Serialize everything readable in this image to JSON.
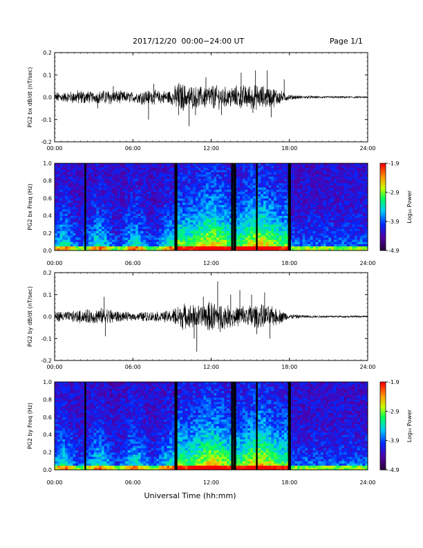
{
  "header": {
    "title": "2017/12/20  00:00−24:00 UT",
    "page": "Page 1/1"
  },
  "chart_data": [
    {
      "type": "line",
      "panel": "bx-waveform",
      "ylabel": "PG2 bx dB/dt (nT/sec)",
      "xlim": [
        0,
        24
      ],
      "ylim": [
        -0.2,
        0.2
      ],
      "xticks": [
        "00:00",
        "06:00",
        "12:00",
        "18:00",
        "24:00"
      ],
      "yticks": [
        "-0.2",
        "-0.1",
        "0.0",
        "0.1",
        "0.2"
      ],
      "envelope": {
        "hours": [
          0,
          1,
          2,
          3,
          4,
          5,
          6,
          7,
          8,
          9,
          9.5,
          10,
          11,
          12,
          13,
          14,
          15,
          16,
          17,
          18,
          19,
          20,
          21,
          22,
          23,
          24
        ],
        "amplitude": [
          0.02,
          0.02,
          0.03,
          0.02,
          0.03,
          0.025,
          0.02,
          0.03,
          0.025,
          0.03,
          0.06,
          0.05,
          0.04,
          0.05,
          0.04,
          0.045,
          0.05,
          0.045,
          0.035,
          0.01,
          0.006,
          0.005,
          0.004,
          0.004,
          0.004,
          0.003
        ]
      },
      "spikes": [
        [
          3.3,
          -0.05
        ],
        [
          4.5,
          0.05
        ],
        [
          7.2,
          -0.1
        ],
        [
          7.6,
          0.06
        ],
        [
          9.5,
          -0.08
        ],
        [
          10.3,
          -0.13
        ],
        [
          10.8,
          -0.08
        ],
        [
          11.6,
          0.09
        ],
        [
          12.8,
          -0.08
        ],
        [
          14.3,
          0.11
        ],
        [
          15.4,
          0.12
        ],
        [
          15.2,
          -0.07
        ],
        [
          16.3,
          0.12
        ],
        [
          16.6,
          -0.09
        ],
        [
          17.6,
          0.08
        ]
      ]
    },
    {
      "type": "heatmap",
      "panel": "bx-spectrogram",
      "ylabel": "PG2 bx Freq (Hz)",
      "xlim": [
        0,
        24
      ],
      "ylim": [
        0,
        1.0
      ],
      "xticks": [
        "00:00",
        "06:00",
        "12:00",
        "18:00",
        "24:00"
      ],
      "yticks": [
        "0.0",
        "0.2",
        "0.4",
        "0.6",
        "0.8",
        "1.0"
      ],
      "colorbar": {
        "label": "Log₁₀ Power",
        "min": -4.9,
        "max": -1.9,
        "ticks": [
          "-1.9",
          "-2.9",
          "-3.9",
          "-4.9"
        ]
      },
      "gap_hours": [
        2.35,
        9.25,
        9.35,
        13.6,
        13.75,
        13.85,
        15.5,
        17.95,
        18.05
      ]
    },
    {
      "type": "line",
      "panel": "by-waveform",
      "ylabel": "PG2 by dB/dt (nT/sec)",
      "xlim": [
        0,
        24
      ],
      "ylim": [
        -0.2,
        0.2
      ],
      "xticks": [
        "00:00",
        "06:00",
        "12:00",
        "18:00",
        "24:00"
      ],
      "yticks": [
        "-0.2",
        "-0.1",
        "0.0",
        "0.1",
        "0.2"
      ],
      "envelope": {
        "hours": [
          0,
          1,
          2,
          3,
          4,
          5,
          6,
          7,
          8,
          9,
          9.5,
          10,
          11,
          12,
          13,
          14,
          15,
          16,
          17,
          18,
          19,
          20,
          21,
          22,
          23,
          24
        ],
        "amplitude": [
          0.02,
          0.02,
          0.025,
          0.03,
          0.035,
          0.02,
          0.015,
          0.02,
          0.02,
          0.025,
          0.05,
          0.05,
          0.045,
          0.06,
          0.045,
          0.04,
          0.05,
          0.045,
          0.035,
          0.01,
          0.006,
          0.005,
          0.004,
          0.004,
          0.004,
          0.003
        ]
      },
      "spikes": [
        [
          3.8,
          0.09
        ],
        [
          3.9,
          -0.09
        ],
        [
          10.7,
          -0.1
        ],
        [
          10.9,
          -0.16
        ],
        [
          11.4,
          0.09
        ],
        [
          12.5,
          0.16
        ],
        [
          12.7,
          -0.07
        ],
        [
          13.5,
          0.1
        ],
        [
          14.2,
          0.12
        ],
        [
          15.1,
          0.1
        ],
        [
          15.5,
          -0.08
        ],
        [
          16.1,
          0.11
        ],
        [
          16.5,
          -0.1
        ]
      ]
    },
    {
      "type": "heatmap",
      "panel": "by-spectrogram",
      "ylabel": "PG2 by Freq (Hz)",
      "xlim": [
        0,
        24
      ],
      "ylim": [
        0,
        1.0
      ],
      "xticks": [
        "00:00",
        "06:00",
        "12:00",
        "18:00",
        "24:00"
      ],
      "yticks": [
        "0.0",
        "0.2",
        "0.4",
        "0.6",
        "0.8",
        "1.0"
      ],
      "colorbar": {
        "label": "Log₁₀ Power",
        "min": -4.9,
        "max": -1.9,
        "ticks": [
          "-1.9",
          "-2.9",
          "-3.9",
          "-4.9"
        ]
      },
      "gap_hours": [
        2.35,
        9.25,
        9.35,
        13.6,
        13.75,
        13.85,
        15.5,
        17.95,
        18.05
      ]
    }
  ],
  "xlabel": "Universal Time (hh:mm)",
  "colors": {
    "trace": "#000000",
    "axis": "#000000",
    "gap": "#000000"
  }
}
